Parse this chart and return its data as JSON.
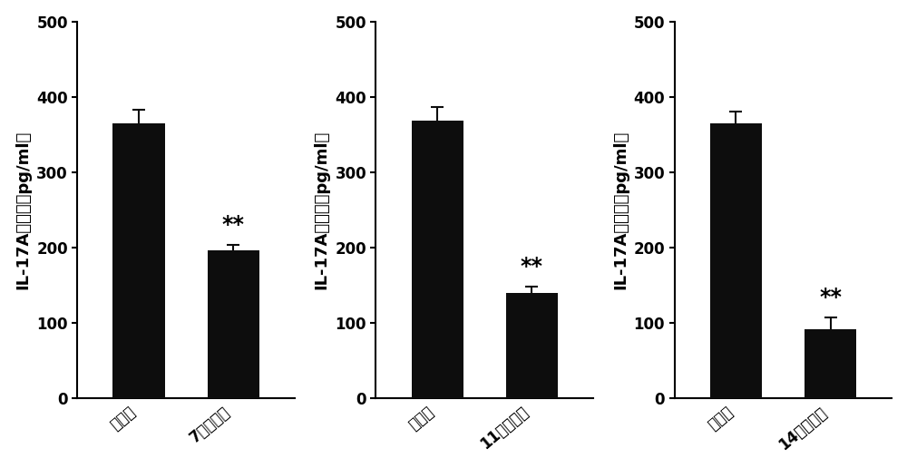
{
  "subplots": [
    {
      "categories": [
        "对照组",
        "7号化合物"
      ],
      "values": [
        365,
        197
      ],
      "errors": [
        18,
        7
      ],
      "sig_label": "**",
      "sig_on_bar": 1,
      "ylabel": "IL-17A的浓度（pg/ml）"
    },
    {
      "categories": [
        "对照组",
        "11号化合物"
      ],
      "values": [
        368,
        140
      ],
      "errors": [
        18,
        8
      ],
      "sig_label": "**",
      "sig_on_bar": 1,
      "ylabel": "IL-17A的浓度（pg/ml）"
    },
    {
      "categories": [
        "对照组",
        "14号化合物"
      ],
      "values": [
        365,
        92
      ],
      "errors": [
        15,
        15
      ],
      "sig_label": "**",
      "sig_on_bar": 1,
      "ylabel": "IL-17A的浓度（pg/ml）"
    }
  ],
  "bar_color": "#0d0d0d",
  "bar_width": 0.55,
  "ylim": [
    0,
    500
  ],
  "yticks": [
    0,
    100,
    200,
    300,
    400,
    500
  ],
  "background_color": "#ffffff",
  "tick_fontsize": 12,
  "label_fontsize": 13,
  "sig_fontsize": 17,
  "error_capsize": 5,
  "error_linewidth": 1.5,
  "error_color": "#0d0d0d",
  "sig_color": "#000000",
  "xtick_rotation": 40
}
